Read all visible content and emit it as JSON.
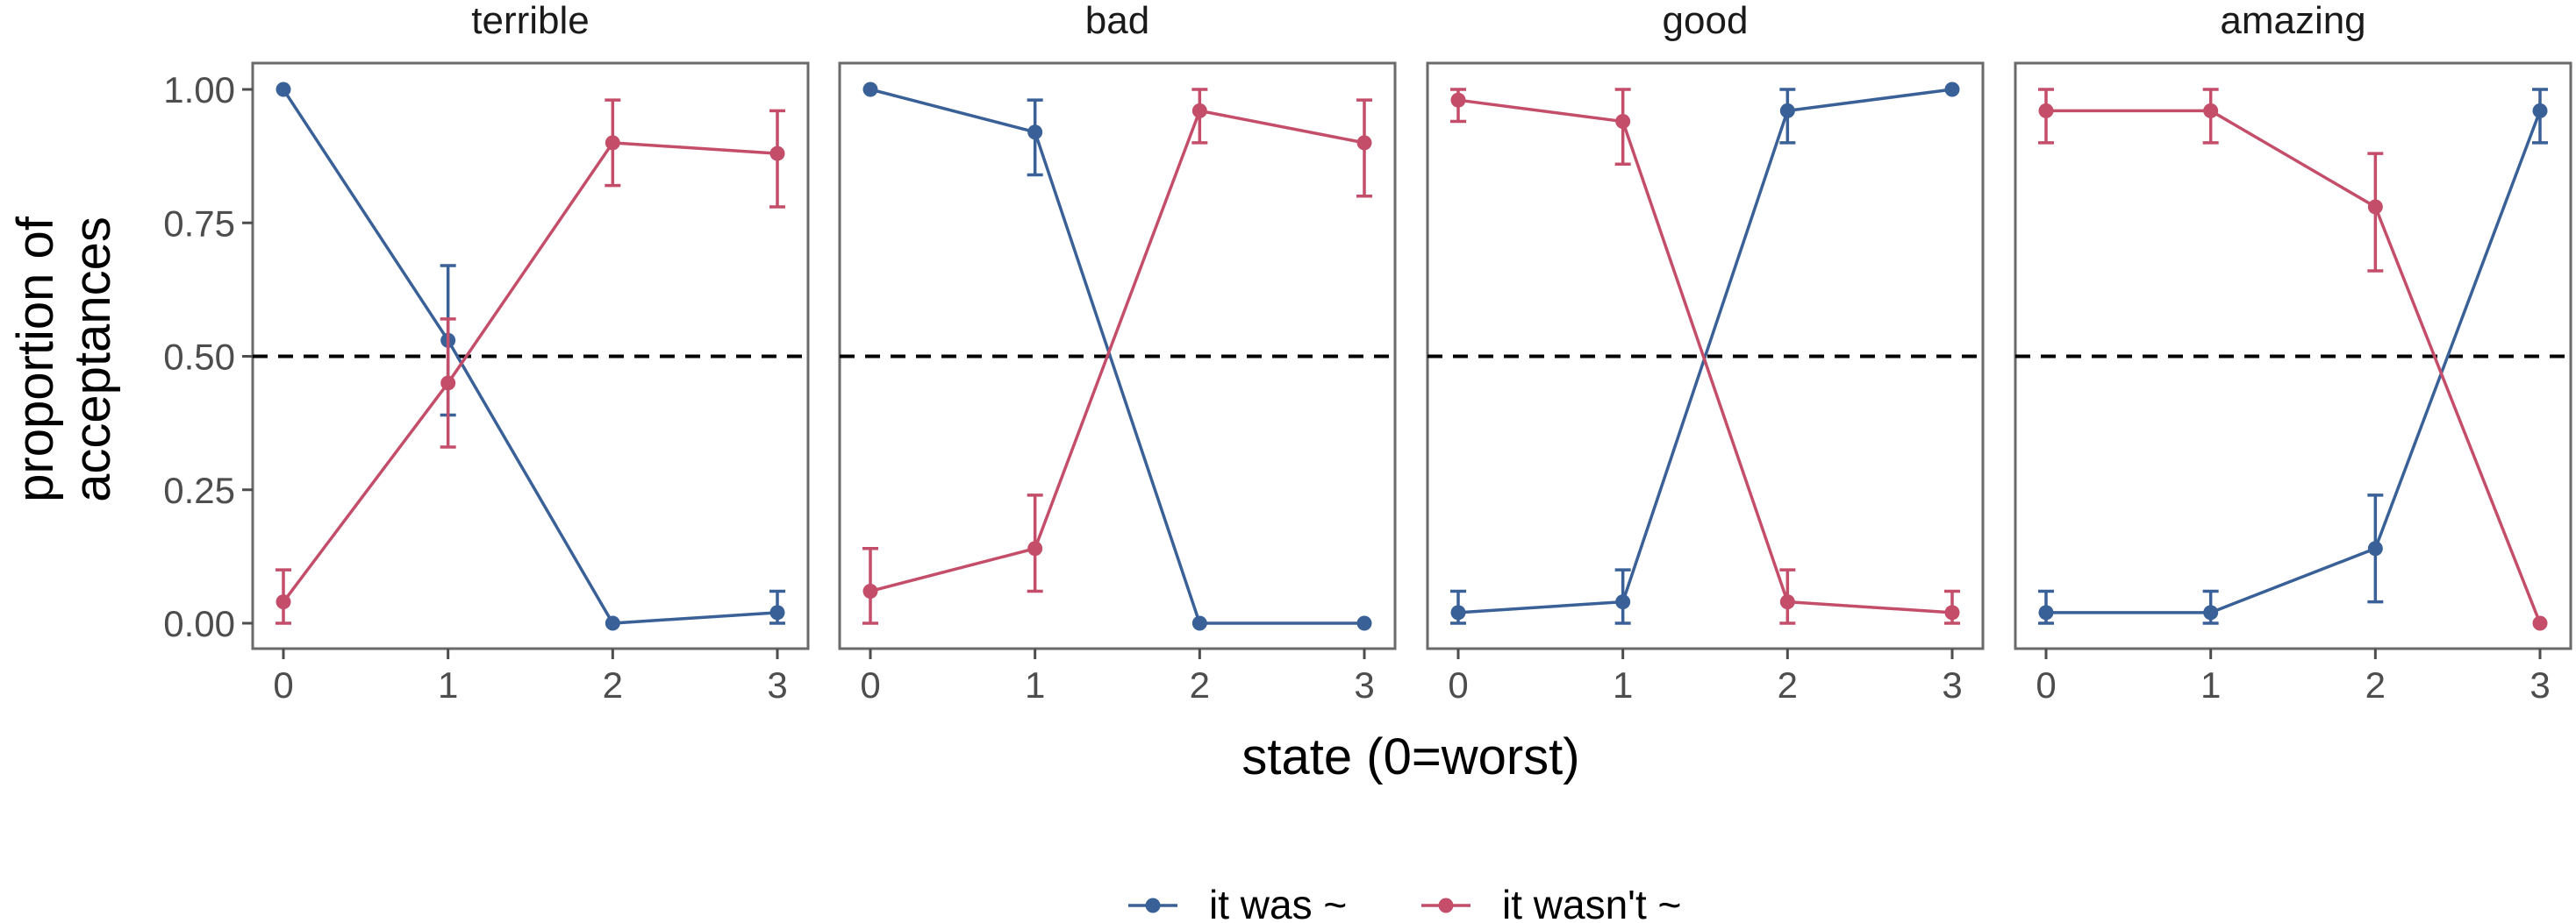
{
  "chart_data": {
    "type": "line",
    "facets": [
      "terrible",
      "bad",
      "good",
      "amazing"
    ],
    "x": [
      0,
      1,
      2,
      3
    ],
    "xlabel": "state (0=worst)",
    "ylabel": [
      "proportion of",
      "acceptances"
    ],
    "ylim": [
      0,
      1
    ],
    "yticks": [
      "0.00",
      "0.25",
      "0.50",
      "0.75",
      "1.00"
    ],
    "reference_line": 0.5,
    "legend_position": "bottom",
    "colors": {
      "it_was": "#3a6098",
      "it_wasnt": "#c44e6a"
    },
    "series": [
      {
        "name": "it was ~",
        "key": "it_was",
        "panels": [
          {
            "y": [
              1.0,
              0.53,
              0.0,
              0.02
            ],
            "lo": [
              1.0,
              0.39,
              0.0,
              0.0
            ],
            "hi": [
              1.0,
              0.67,
              0.0,
              0.06
            ]
          },
          {
            "y": [
              1.0,
              0.92,
              0.0,
              0.0
            ],
            "lo": [
              1.0,
              0.84,
              0.0,
              0.0
            ],
            "hi": [
              1.0,
              0.98,
              0.0,
              0.0
            ]
          },
          {
            "y": [
              0.02,
              0.04,
              0.96,
              1.0
            ],
            "lo": [
              0.0,
              0.0,
              0.9,
              1.0
            ],
            "hi": [
              0.06,
              0.1,
              1.0,
              1.0
            ]
          },
          {
            "y": [
              0.02,
              0.02,
              0.14,
              0.96
            ],
            "lo": [
              0.0,
              0.0,
              0.04,
              0.9
            ],
            "hi": [
              0.06,
              0.06,
              0.24,
              1.0
            ]
          }
        ]
      },
      {
        "name": "it wasn't ~",
        "key": "it_wasnt",
        "panels": [
          {
            "y": [
              0.04,
              0.45,
              0.9,
              0.88
            ],
            "lo": [
              0.0,
              0.33,
              0.82,
              0.78
            ],
            "hi": [
              0.1,
              0.57,
              0.98,
              0.96
            ]
          },
          {
            "y": [
              0.06,
              0.14,
              0.96,
              0.9
            ],
            "lo": [
              0.0,
              0.06,
              0.9,
              0.8
            ],
            "hi": [
              0.14,
              0.24,
              1.0,
              0.98
            ]
          },
          {
            "y": [
              0.98,
              0.94,
              0.04,
              0.02
            ],
            "lo": [
              0.94,
              0.86,
              0.0,
              0.0
            ],
            "hi": [
              1.0,
              1.0,
              0.1,
              0.06
            ]
          },
          {
            "y": [
              0.96,
              0.96,
              0.78,
              0.0
            ],
            "lo": [
              0.9,
              0.9,
              0.66,
              0.0
            ],
            "hi": [
              1.0,
              1.0,
              0.88,
              0.0
            ]
          }
        ]
      }
    ]
  }
}
